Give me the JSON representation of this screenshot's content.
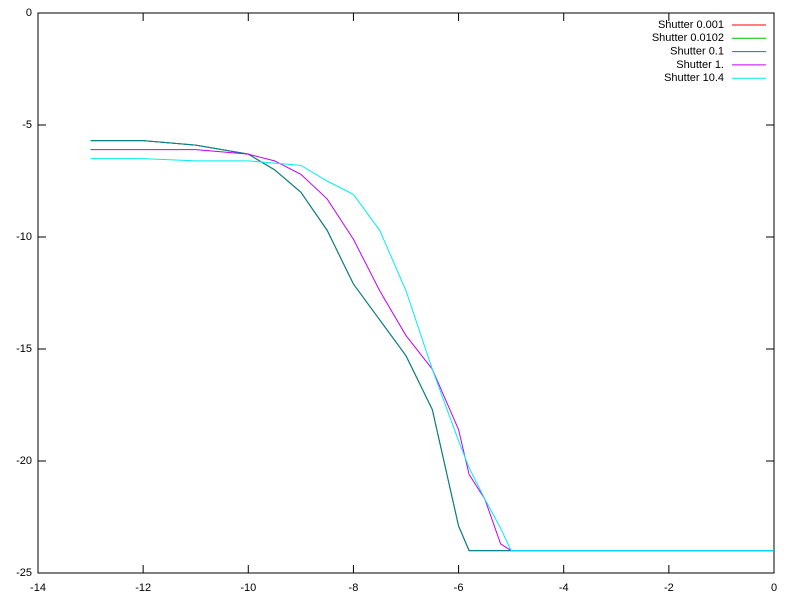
{
  "chart_data": {
    "type": "line",
    "x": [
      -13,
      -12,
      -11,
      -10,
      -9.5,
      -9,
      -8.5,
      -8,
      -7.5,
      -7,
      -6.5,
      -6,
      -5.8,
      -5.5,
      -5.2,
      -5,
      0
    ],
    "series": [
      {
        "name": "Shutter 0.001",
        "color": "#ff0000",
        "values": [
          -5.7,
          -5.7,
          -5.9,
          -6.3,
          -7.0,
          -8.0,
          -9.7,
          -12.1,
          -13.7,
          -15.3,
          -17.7,
          -22.9,
          -24,
          -24,
          -24,
          -24,
          -24
        ]
      },
      {
        "name": "Shutter 0.0102",
        "color": "#00c000",
        "values": [
          -5.7,
          -5.7,
          -5.9,
          -6.3,
          -7.0,
          -8.0,
          -9.7,
          -12.1,
          -13.7,
          -15.3,
          -17.7,
          -22.9,
          -24,
          -24,
          -24,
          -24,
          -24
        ]
      },
      {
        "name": "Shutter 0.1",
        "color": "#0080a0",
        "values": [
          -5.7,
          -5.7,
          -5.9,
          -6.3,
          -7.0,
          -8.0,
          -9.7,
          -12.1,
          -13.7,
          -15.3,
          -17.7,
          -22.9,
          -24,
          -24,
          -24,
          -24,
          -24
        ]
      },
      {
        "name": "Shutter 1.",
        "color": "#c000ff",
        "values": [
          -6.1,
          -6.1,
          -6.1,
          -6.3,
          -6.6,
          -7.2,
          -8.3,
          -10.1,
          -12.4,
          -14.4,
          -15.9,
          -18.6,
          -20.6,
          -21.7,
          -23.7,
          -24,
          -24
        ]
      },
      {
        "name": "Shutter 10.4",
        "color": "#00eeee",
        "values": [
          -6.5,
          -6.5,
          -6.6,
          -6.6,
          -6.7,
          -6.8,
          -7.5,
          -8.1,
          -9.7,
          -12.4,
          -15.9,
          -19.1,
          -20.3,
          -21.7,
          -23.0,
          -24,
          -24
        ]
      }
    ],
    "xlim": [
      -14,
      0
    ],
    "xticks": [
      -14,
      -12,
      -10,
      -8,
      -6,
      -4,
      -2,
      0
    ],
    "ylim": [
      -25,
      0
    ],
    "yticks": [
      -25,
      -20,
      -15,
      -10,
      -5,
      0
    ],
    "legend": "top-right"
  }
}
